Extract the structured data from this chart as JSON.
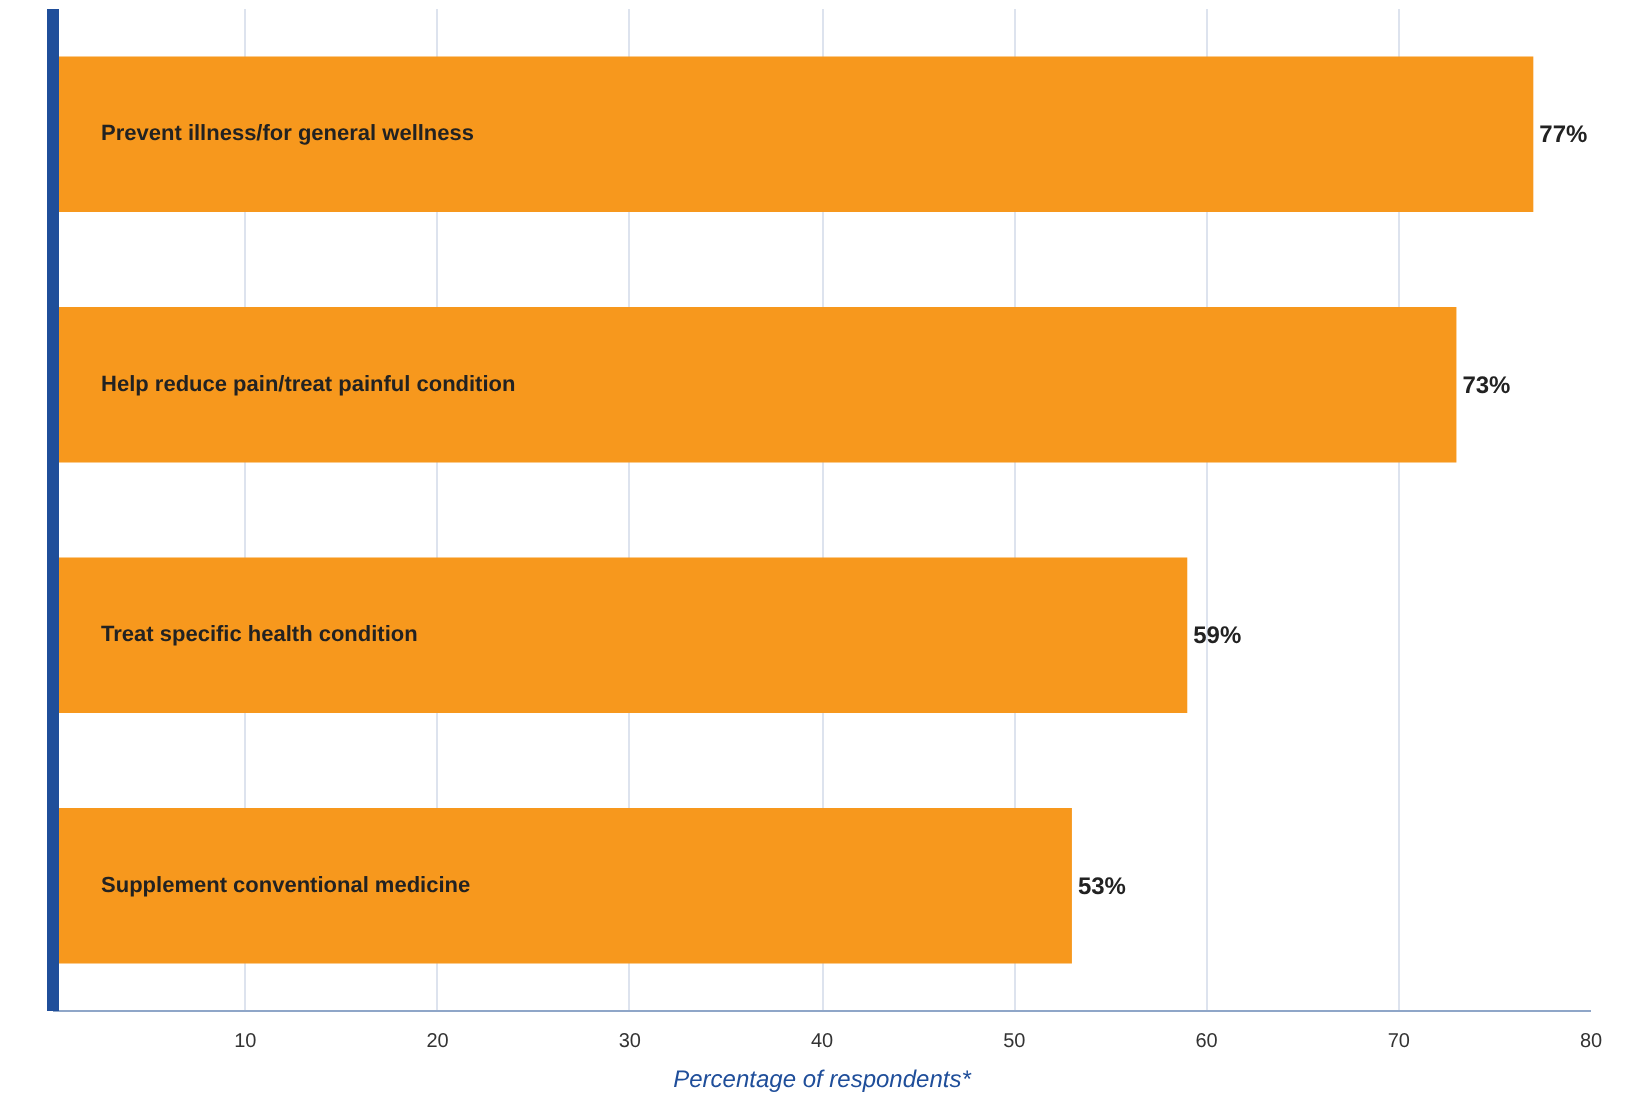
{
  "chart_data": {
    "type": "bar",
    "orientation": "horizontal",
    "xlabel": "Percentage of respondents*",
    "categories": [
      "Prevent illness/for general wellness",
      "Help reduce pain/treat painful condition",
      "Treat specific health condition",
      "Supplement conventional medicine"
    ],
    "values": [
      77,
      73,
      59,
      53
    ],
    "value_labels": [
      "77%",
      "73%",
      "59%",
      "53%"
    ],
    "color": "#f7981d",
    "xlim": [
      0,
      80
    ],
    "xticks": [
      10,
      20,
      30,
      40,
      50,
      60,
      70,
      80
    ],
    "grid": "x"
  }
}
